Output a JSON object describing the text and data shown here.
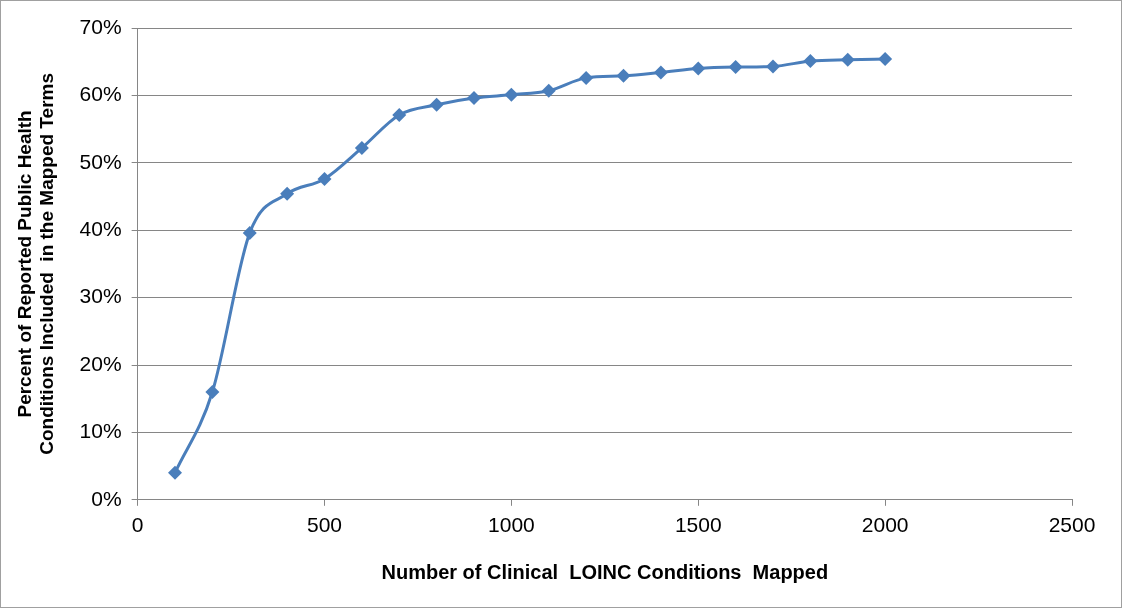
{
  "chart_data": {
    "type": "line",
    "xlabel": "Number of Clinical  LOINC Conditions  Mapped",
    "ylabel": "Percent of Reported Public Health\nConditions Included  in the Mapped Terms",
    "x": [
      100,
      200,
      300,
      400,
      500,
      600,
      700,
      800,
      900,
      1000,
      1100,
      1200,
      1300,
      1400,
      1500,
      1600,
      1700,
      1800,
      1900,
      2000
    ],
    "series": [
      {
        "color": "#4a7ebb",
        "values": [
          4,
          16,
          39.6,
          45.4,
          47.6,
          52.2,
          57.1,
          58.6,
          59.6,
          60.1,
          60.7,
          62.6,
          62.9,
          63.4,
          64.0,
          64.2,
          64.3,
          65.1,
          65.3,
          65.4
        ]
      }
    ],
    "xlim": [
      0,
      2500
    ],
    "xticks": [
      0,
      500,
      1000,
      1500,
      2000,
      2500
    ],
    "ylim": [
      0,
      70
    ],
    "yticks": [
      {
        "value": 0,
        "label": "0%"
      },
      {
        "value": 10,
        "label": "10%"
      },
      {
        "value": 20,
        "label": "20%"
      },
      {
        "value": 30,
        "label": "30%"
      },
      {
        "value": 40,
        "label": "40%"
      },
      {
        "value": 50,
        "label": "50%"
      },
      {
        "value": 60,
        "label": "60%"
      },
      {
        "value": 70,
        "label": "70%"
      }
    ],
    "grid": "y",
    "legend": false,
    "marker": "diamond",
    "line_style": "solid"
  }
}
